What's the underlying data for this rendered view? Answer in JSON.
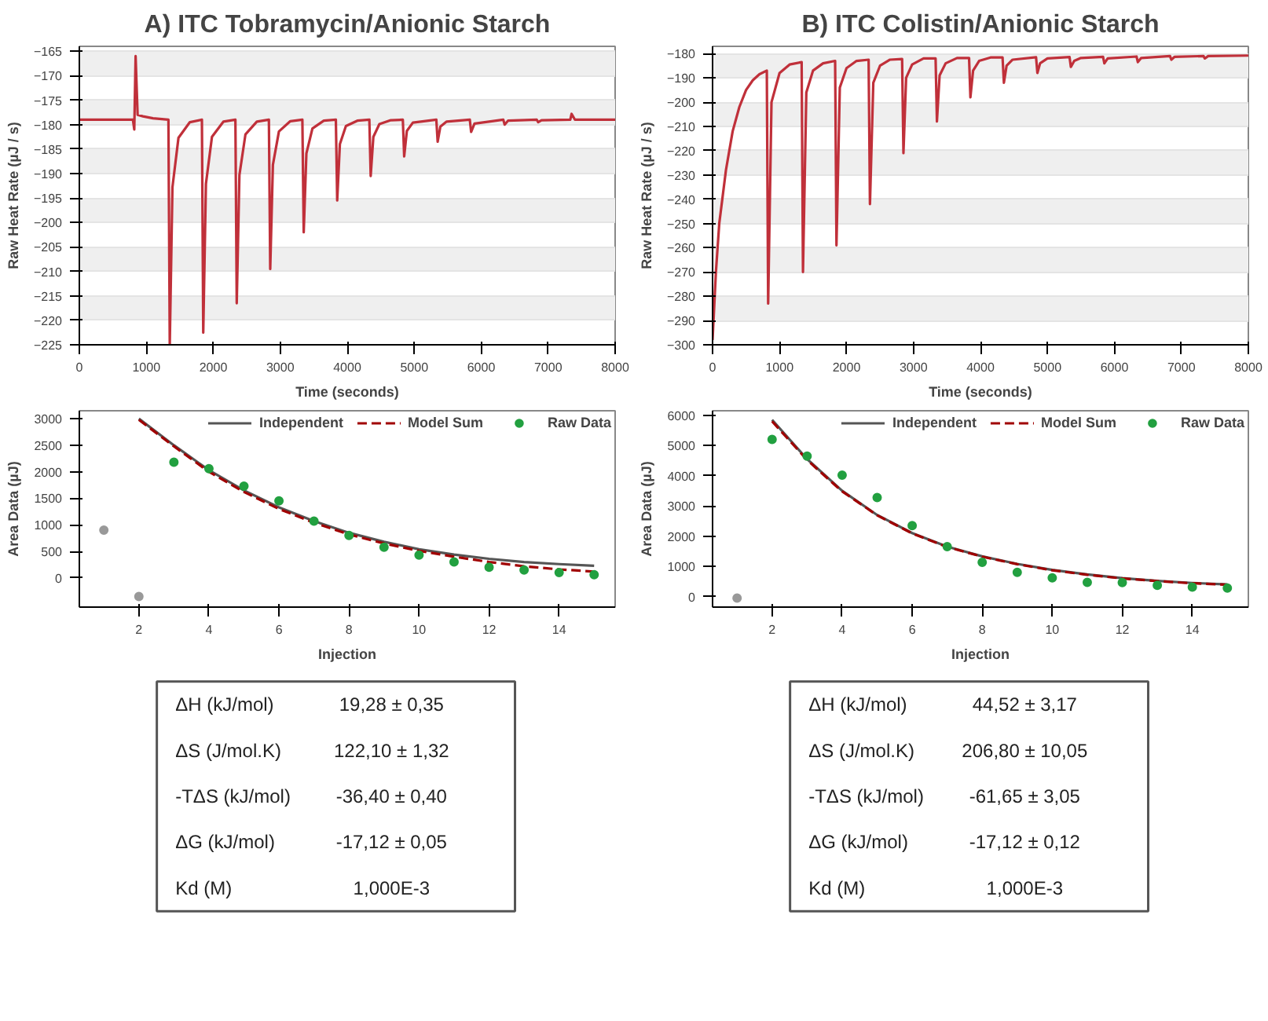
{
  "chart_data": [
    {
      "type": "line",
      "title": "A) ITC Tobramycin/Anionic Starch",
      "xlabel": "Time (seconds)",
      "ylabel": "Raw Heat Rate (µJ / s)",
      "xlim": [
        0,
        8000
      ],
      "ylim": [
        -225,
        -164
      ],
      "xticks": [
        0,
        1000,
        2000,
        3000,
        4000,
        5000,
        6000,
        7000,
        8000
      ],
      "yticks": [
        -225,
        -220,
        -215,
        -210,
        -205,
        -200,
        -195,
        -190,
        -185,
        -180,
        -175,
        -170,
        -165
      ],
      "grid": "y",
      "series": [
        {
          "color": "#c0303a",
          "x": [
            0,
            800,
            820,
            840,
            870,
            950,
            1100,
            1330,
            1350,
            1390,
            1480,
            1650,
            1830,
            1850,
            1890,
            1980,
            2150,
            2330,
            2350,
            2390,
            2480,
            2650,
            2830,
            2850,
            2890,
            2980,
            3150,
            3330,
            3350,
            3390,
            3480,
            3650,
            3830,
            3850,
            3890,
            3980,
            4150,
            4330,
            4350,
            4390,
            4480,
            4650,
            4830,
            4850,
            4890,
            4980,
            5330,
            5350,
            5390,
            5480,
            5830,
            5850,
            5900,
            6330,
            6350,
            6400,
            6830,
            6850,
            6900,
            7330,
            7350,
            7400,
            8000
          ],
          "values": [
            -179,
            -179,
            -181,
            -166,
            -178,
            -178.3,
            -178.7,
            -179,
            -225,
            -192.8,
            -182.7,
            -179.5,
            -179,
            -222.5,
            -192.1,
            -182.5,
            -179.4,
            -179,
            -216.5,
            -190.3,
            -182,
            -179.4,
            -179,
            -209.5,
            -188.2,
            -181.4,
            -179.3,
            -179,
            -202,
            -185.9,
            -180.8,
            -179.2,
            -179,
            -195.5,
            -184,
            -180.3,
            -179.2,
            -179,
            -190.5,
            -182.5,
            -179.9,
            -179.1,
            -179,
            -186.5,
            -181.3,
            -179.6,
            -179,
            -183.5,
            -180.4,
            -179.4,
            -179,
            -181.5,
            -179.8,
            -179,
            -180,
            -179.2,
            -179,
            -179.5,
            -179.1,
            -179,
            -177.8,
            -179,
            -179
          ]
        }
      ]
    },
    {
      "type": "line",
      "title": "B) ITC Colistin/Anionic Starch",
      "xlabel": "Time (seconds)",
      "ylabel": "Raw Heat Rate (µJ / s)",
      "xlim": [
        0,
        8000
      ],
      "ylim": [
        -300,
        -177
      ],
      "xticks": [
        0,
        1000,
        2000,
        3000,
        4000,
        5000,
        6000,
        7000,
        8000
      ],
      "yticks": [
        -300,
        -290,
        -280,
        -270,
        -260,
        -250,
        -240,
        -230,
        -220,
        -210,
        -200,
        -190,
        -180
      ],
      "grid": "y",
      "series": [
        {
          "color": "#c0303a",
          "x": [
            0,
            50,
            100,
            200,
            300,
            400,
            500,
            600,
            700,
            810,
            830,
            880,
            1000,
            1150,
            1330,
            1350,
            1400,
            1500,
            1650,
            1830,
            1850,
            1900,
            2000,
            2150,
            2330,
            2350,
            2400,
            2500,
            2650,
            2830,
            2850,
            2890,
            2980,
            3150,
            3330,
            3350,
            3390,
            3480,
            3650,
            3830,
            3850,
            3890,
            3980,
            4150,
            4330,
            4350,
            4390,
            4480,
            4830,
            4850,
            4890,
            5000,
            5330,
            5350,
            5400,
            5500,
            5830,
            5850,
            5900,
            6330,
            6350,
            6400,
            6830,
            6850,
            6900,
            7330,
            7350,
            7400,
            8000
          ],
          "values": [
            -298,
            -270,
            -250,
            -228,
            -212,
            -202,
            -195,
            -191,
            -188.5,
            -187,
            -283,
            -200,
            -188,
            -184.5,
            -183.5,
            -270,
            -196,
            -187,
            -184,
            -183,
            -259,
            -194,
            -186,
            -183,
            -182.5,
            -242,
            -192,
            -185,
            -182.5,
            -182.2,
            -221,
            -190,
            -184.5,
            -182,
            -182,
            -208,
            -189,
            -184,
            -181.8,
            -181.8,
            -198,
            -187,
            -183,
            -181.6,
            -181.6,
            -192,
            -185,
            -182.5,
            -181.5,
            -188,
            -184,
            -182,
            -181.4,
            -185.5,
            -183,
            -181.8,
            -181.3,
            -184,
            -182,
            -181.2,
            -183.5,
            -181.8,
            -181,
            -182.5,
            -181.3,
            -181,
            -182,
            -181,
            -180.8
          ]
        }
      ]
    },
    {
      "type": "scatter",
      "xlabel": "Injection",
      "ylabel": "Area Data (µJ)",
      "xlim": [
        0.3,
        15.6
      ],
      "ylim": [
        -550,
        3150
      ],
      "xticks": [
        2,
        4,
        6,
        8,
        10,
        12,
        14
      ],
      "yticks": [
        0,
        500,
        1000,
        1500,
        2000,
        2500,
        3000
      ],
      "legend": "top right",
      "series": [
        {
          "name": "Independent",
          "type": "line",
          "color": "#555555",
          "line_style": "solid",
          "x": [
            2,
            3,
            4,
            5,
            6,
            7,
            8,
            9,
            10,
            11,
            12,
            13,
            14,
            15
          ],
          "values": [
            3000,
            2500,
            2030,
            1650,
            1330,
            1070,
            850,
            680,
            540,
            440,
            360,
            300,
            260,
            230
          ]
        },
        {
          "name": "Model Sum",
          "type": "line",
          "color": "#a00000",
          "line_style": "dashed",
          "x": [
            2,
            3,
            4,
            5,
            6,
            7,
            8,
            9,
            10,
            11,
            12,
            13,
            14,
            15
          ],
          "values": [
            2980,
            2480,
            2000,
            1620,
            1300,
            1040,
            820,
            650,
            510,
            400,
            300,
            220,
            160,
            120
          ]
        },
        {
          "name": "Raw Data",
          "type": "scatter",
          "marker": "circle",
          "color": "#22a040",
          "x": [
            3,
            4,
            5,
            6,
            7,
            8,
            9,
            10,
            11,
            12,
            13,
            14,
            15
          ],
          "values": [
            2180,
            2060,
            1730,
            1450,
            1070,
            800,
            580,
            430,
            300,
            200,
            150,
            100,
            60
          ]
        },
        {
          "type": "scatter",
          "marker": "circle",
          "color": "#999999",
          "x": [
            1,
            2
          ],
          "values": [
            900,
            -350
          ]
        }
      ]
    },
    {
      "type": "scatter",
      "xlabel": "Injection",
      "ylabel": "Area Data (µJ)",
      "xlim": [
        0.3,
        15.6
      ],
      "ylim": [
        -350,
        6150
      ],
      "xticks": [
        2,
        4,
        6,
        8,
        10,
        12,
        14
      ],
      "yticks": [
        0,
        1000,
        2000,
        3000,
        4000,
        5000,
        6000
      ],
      "legend": "top right",
      "series": [
        {
          "name": "Independent",
          "type": "line",
          "color": "#555555",
          "line_style": "solid",
          "x": [
            2,
            3,
            4,
            5,
            6,
            7,
            8,
            9,
            10,
            11,
            12,
            13,
            14,
            15
          ],
          "values": [
            5850,
            4550,
            3500,
            2700,
            2100,
            1650,
            1330,
            1080,
            880,
            730,
            610,
            520,
            450,
            400
          ]
        },
        {
          "name": "Model Sum",
          "type": "line",
          "color": "#a00000",
          "line_style": "dashed",
          "x": [
            2,
            3,
            4,
            5,
            6,
            7,
            8,
            9,
            10,
            11,
            12,
            13,
            14,
            15
          ],
          "values": [
            5800,
            4520,
            3480,
            2690,
            2090,
            1640,
            1320,
            1070,
            870,
            720,
            600,
            510,
            440,
            390
          ]
        },
        {
          "name": "Raw Data",
          "type": "scatter",
          "marker": "circle",
          "color": "#22a040",
          "x": [
            2,
            3,
            4,
            5,
            6,
            7,
            8,
            9,
            10,
            11,
            12,
            13,
            14,
            15
          ],
          "values": [
            5200,
            4650,
            4020,
            3280,
            2350,
            1650,
            1130,
            800,
            620,
            470,
            460,
            370,
            310,
            280
          ]
        },
        {
          "type": "scatter",
          "marker": "circle",
          "color": "#999999",
          "x": [
            1
          ],
          "values": [
            -50
          ]
        }
      ]
    },
    {
      "type": "other",
      "categories": [
        "ΔH (kJ/mol)",
        "ΔS (J/mol.K)",
        "-TΔS (kJ/mol)",
        "ΔG (kJ/mol)",
        "Kd (M)"
      ],
      "annotations": [
        "19,28 ± 0,35",
        "122,10 ± 1,32",
        "-36,40 ± 0,40",
        "-17,12 ± 0,05",
        "1,000E-3"
      ]
    },
    {
      "type": "other",
      "categories": [
        "ΔH (kJ/mol)",
        "ΔS (J/mol.K)",
        "-TΔS (kJ/mol)",
        "ΔG (kJ/mol)",
        "Kd (M)"
      ],
      "annotations": [
        "44,52 ± 3,17",
        "206,80 ± 10,05",
        "-61,65 ± 3,05",
        "-17,12 ± 0,12",
        "1,000E-3"
      ]
    }
  ]
}
